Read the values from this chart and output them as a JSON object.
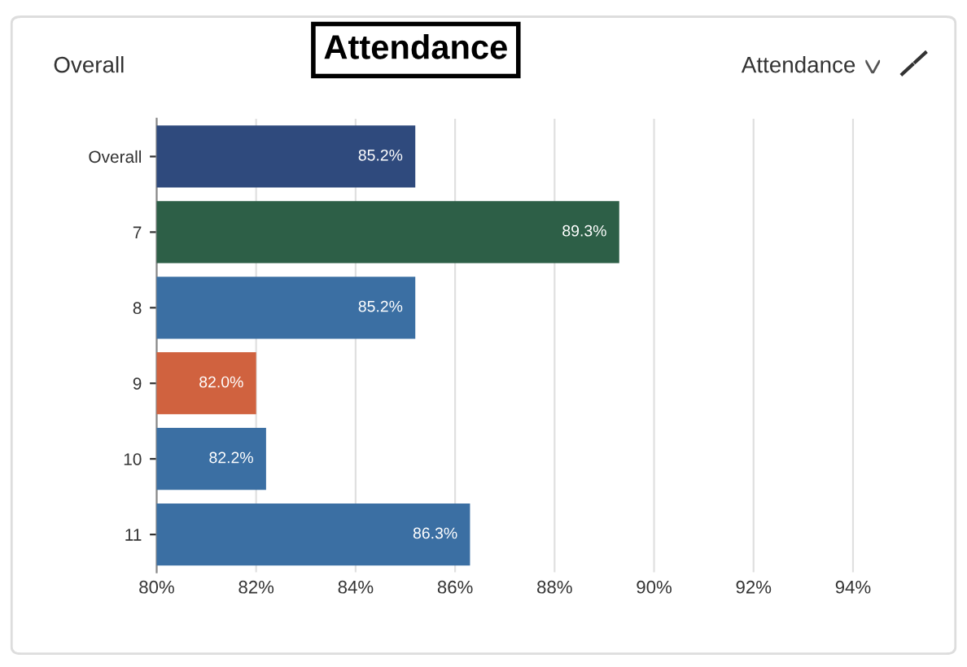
{
  "chart_data": {
    "type": "bar",
    "orientation": "horizontal",
    "title": "Attendance",
    "subtitle": "Overall",
    "annotations": [
      "Attendance"
    ],
    "categories": [
      "Overall",
      "7",
      "8",
      "9",
      "10",
      "11"
    ],
    "values": [
      85.2,
      89.3,
      85.2,
      82.0,
      82.2,
      86.3
    ],
    "value_labels": [
      "85.2%",
      "89.3%",
      "85.2%",
      "82.0%",
      "82.2%",
      "86.3%"
    ],
    "colors": [
      "#2f4a7d",
      "#2d5f47",
      "#3b6fa3",
      "#d0623f",
      "#3b6fa3",
      "#3b6fa3"
    ],
    "xlim": [
      80,
      96
    ],
    "xticks": [
      {
        "value": 80,
        "label": "80%"
      },
      {
        "value": 82,
        "label": "82%"
      },
      {
        "value": 84,
        "label": "84%"
      },
      {
        "value": 86,
        "label": "86%"
      },
      {
        "value": 88,
        "label": "88%"
      },
      {
        "value": 90,
        "label": "90%"
      },
      {
        "value": 92,
        "label": "92%"
      },
      {
        "value": 94,
        "label": "94%"
      }
    ],
    "grid": "x",
    "legend": false
  }
}
